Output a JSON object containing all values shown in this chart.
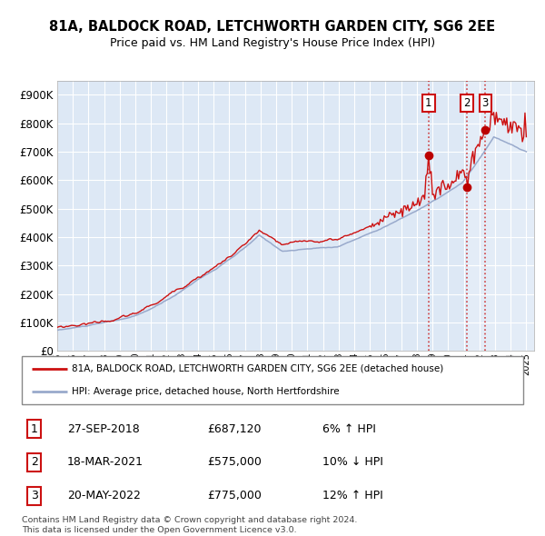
{
  "title1": "81A, BALDOCK ROAD, LETCHWORTH GARDEN CITY, SG6 2EE",
  "title2": "Price paid vs. HM Land Registry's House Price Index (HPI)",
  "legend_red": "81A, BALDOCK ROAD, LETCHWORTH GARDEN CITY, SG6 2EE (detached house)",
  "legend_blue": "HPI: Average price, detached house, North Hertfordshire",
  "transactions": [
    {
      "num": 1,
      "date": "27-SEP-2018",
      "price": "£687,120",
      "pct": "6% ↑ HPI",
      "x_year": 2018.75,
      "y_val": 687120
    },
    {
      "num": 2,
      "date": "18-MAR-2021",
      "price": "£575,000",
      "pct": "10% ↓ HPI",
      "x_year": 2021.21,
      "y_val": 575000
    },
    {
      "num": 3,
      "date": "20-MAY-2022",
      "price": "£775,000",
      "pct": "12% ↑ HPI",
      "x_year": 2022.38,
      "y_val": 775000
    }
  ],
  "footnote1": "Contains HM Land Registry data © Crown copyright and database right 2024.",
  "footnote2": "This data is licensed under the Open Government Licence v3.0.",
  "ylim": [
    0,
    950000
  ],
  "xlim_start": 1995.0,
  "xlim_end": 2025.5,
  "background_color": "#ffffff",
  "plot_bg_color": "#dde8f5",
  "plot_bg_highlight": "#e8f0fa",
  "grid_color": "#ffffff",
  "red_color": "#cc1111",
  "blue_color": "#99aacc",
  "marker_color": "#bb0000",
  "dashed_line_color": "#cc2222",
  "label_box_edge": "#cc1111",
  "spine_color": "#aaaaaa"
}
